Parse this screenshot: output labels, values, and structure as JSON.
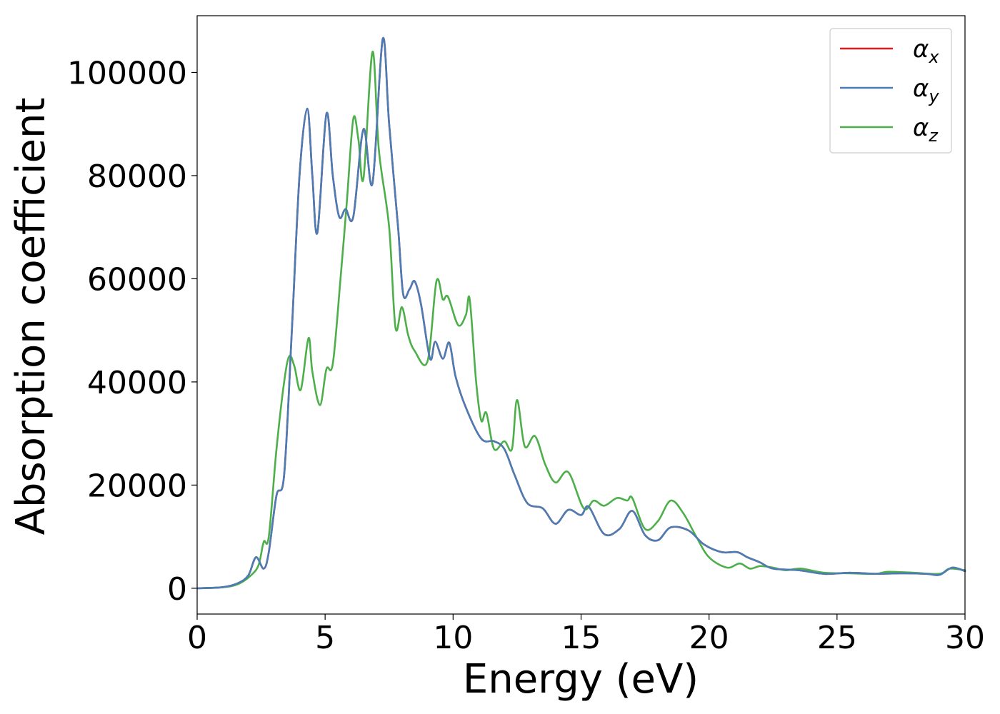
{
  "chart_data": {
    "type": "line",
    "xlabel": "Energy (eV)",
    "ylabel": "Absorption coefficient",
    "xlim": [
      0,
      30
    ],
    "ylim": [
      -5000,
      111000
    ],
    "xticks": [
      0,
      5,
      10,
      15,
      20,
      25,
      30
    ],
    "yticks": [
      0,
      20000,
      40000,
      60000,
      80000,
      100000
    ],
    "grid": false,
    "legend": {
      "placement": "top-right"
    },
    "series": [
      {
        "name": "α_x",
        "label_base": "α",
        "label_sub": "x",
        "color": "#e41a1c",
        "points": [
          [
            0,
            0
          ],
          [
            1,
            200
          ],
          [
            1.6,
            1000
          ],
          [
            2,
            2500
          ],
          [
            2.3,
            6000
          ],
          [
            2.6,
            3800
          ],
          [
            2.8,
            7000
          ],
          [
            3.1,
            18000
          ],
          [
            3.4,
            22000
          ],
          [
            3.7,
            50000
          ],
          [
            4,
            80000
          ],
          [
            4.3,
            93000
          ],
          [
            4.5,
            80000
          ],
          [
            4.7,
            69000
          ],
          [
            5.05,
            92000
          ],
          [
            5.3,
            80000
          ],
          [
            5.55,
            72000
          ],
          [
            5.8,
            73500
          ],
          [
            6.1,
            72000
          ],
          [
            6.5,
            89000
          ],
          [
            6.85,
            78500
          ],
          [
            7.25,
            106500
          ],
          [
            7.5,
            90000
          ],
          [
            7.85,
            70000
          ],
          [
            8.05,
            57000
          ],
          [
            8.3,
            58000
          ],
          [
            8.5,
            59500
          ],
          [
            8.75,
            55000
          ],
          [
            9.1,
            44500
          ],
          [
            9.3,
            47800
          ],
          [
            9.6,
            44500
          ],
          [
            9.85,
            47600
          ],
          [
            10.1,
            41000
          ],
          [
            10.5,
            35000
          ],
          [
            11.1,
            29000
          ],
          [
            11.6,
            28500
          ],
          [
            12,
            27000
          ],
          [
            12.4,
            22000
          ],
          [
            12.9,
            16500
          ],
          [
            13.5,
            15500
          ],
          [
            14,
            12500
          ],
          [
            14.5,
            15200
          ],
          [
            15,
            14200
          ],
          [
            15.3,
            15800
          ],
          [
            15.9,
            10500
          ],
          [
            16.5,
            11500
          ],
          [
            17,
            15000
          ],
          [
            17.5,
            10300
          ],
          [
            18,
            9300
          ],
          [
            18.5,
            11800
          ],
          [
            19.2,
            11200
          ],
          [
            19.8,
            8500
          ],
          [
            20.5,
            7000
          ],
          [
            21.1,
            7000
          ],
          [
            21.5,
            6000
          ],
          [
            22,
            5000
          ],
          [
            22.5,
            3800
          ],
          [
            23.5,
            3500
          ],
          [
            24.5,
            2800
          ],
          [
            25.5,
            3000
          ],
          [
            26.5,
            2800
          ],
          [
            27.5,
            2900
          ],
          [
            28.5,
            2800
          ],
          [
            29,
            2600
          ],
          [
            29.5,
            4000
          ],
          [
            30,
            3300
          ]
        ]
      },
      {
        "name": "α_y",
        "label_base": "α",
        "label_sub": "y",
        "color": "#4a7db5",
        "points": [
          [
            0,
            0
          ],
          [
            1,
            200
          ],
          [
            1.6,
            1000
          ],
          [
            2,
            2500
          ],
          [
            2.3,
            6000
          ],
          [
            2.6,
            3800
          ],
          [
            2.8,
            7000
          ],
          [
            3.1,
            18000
          ],
          [
            3.4,
            22000
          ],
          [
            3.7,
            50000
          ],
          [
            4,
            80000
          ],
          [
            4.3,
            93000
          ],
          [
            4.5,
            80000
          ],
          [
            4.7,
            69000
          ],
          [
            5.05,
            92000
          ],
          [
            5.3,
            80000
          ],
          [
            5.55,
            72000
          ],
          [
            5.8,
            73500
          ],
          [
            6.1,
            72000
          ],
          [
            6.5,
            89000
          ],
          [
            6.85,
            78500
          ],
          [
            7.25,
            106500
          ],
          [
            7.5,
            90000
          ],
          [
            7.85,
            70000
          ],
          [
            8.05,
            57000
          ],
          [
            8.3,
            58000
          ],
          [
            8.5,
            59500
          ],
          [
            8.75,
            55000
          ],
          [
            9.1,
            44500
          ],
          [
            9.3,
            47800
          ],
          [
            9.6,
            44500
          ],
          [
            9.85,
            47600
          ],
          [
            10.1,
            41000
          ],
          [
            10.5,
            35000
          ],
          [
            11.1,
            29000
          ],
          [
            11.6,
            28500
          ],
          [
            12,
            27000
          ],
          [
            12.4,
            22000
          ],
          [
            12.9,
            16500
          ],
          [
            13.5,
            15500
          ],
          [
            14,
            12500
          ],
          [
            14.5,
            15200
          ],
          [
            15,
            14200
          ],
          [
            15.3,
            15800
          ],
          [
            15.9,
            10500
          ],
          [
            16.5,
            11500
          ],
          [
            17,
            15000
          ],
          [
            17.5,
            10300
          ],
          [
            18,
            9300
          ],
          [
            18.5,
            11800
          ],
          [
            19.2,
            11200
          ],
          [
            19.8,
            8500
          ],
          [
            20.5,
            7000
          ],
          [
            21.1,
            7000
          ],
          [
            21.5,
            6000
          ],
          [
            22,
            5000
          ],
          [
            22.5,
            3800
          ],
          [
            23.5,
            3500
          ],
          [
            24.5,
            2800
          ],
          [
            25.5,
            3000
          ],
          [
            26.5,
            2800
          ],
          [
            27.5,
            2900
          ],
          [
            28.5,
            2800
          ],
          [
            29,
            2600
          ],
          [
            29.5,
            4000
          ],
          [
            30,
            3300
          ]
        ]
      },
      {
        "name": "α_z",
        "label_base": "α",
        "label_sub": "z",
        "color": "#4daf4a",
        "points": [
          [
            0,
            0
          ],
          [
            1,
            200
          ],
          [
            1.6,
            800
          ],
          [
            2.1,
            2500
          ],
          [
            2.4,
            4500
          ],
          [
            2.6,
            9000
          ],
          [
            2.8,
            10000
          ],
          [
            3.1,
            27000
          ],
          [
            3.4,
            40000
          ],
          [
            3.6,
            45000
          ],
          [
            3.8,
            43000
          ],
          [
            4.05,
            38500
          ],
          [
            4.35,
            48500
          ],
          [
            4.5,
            42000
          ],
          [
            4.8,
            35500
          ],
          [
            5.05,
            42500
          ],
          [
            5.3,
            43500
          ],
          [
            5.6,
            60000
          ],
          [
            5.85,
            75000
          ],
          [
            6.1,
            91000
          ],
          [
            6.3,
            87000
          ],
          [
            6.5,
            79500
          ],
          [
            6.85,
            104000
          ],
          [
            7.1,
            85000
          ],
          [
            7.5,
            70000
          ],
          [
            7.75,
            50500
          ],
          [
            8,
            54500
          ],
          [
            8.25,
            49000
          ],
          [
            8.5,
            46000
          ],
          [
            9,
            44000
          ],
          [
            9.35,
            59500
          ],
          [
            9.6,
            56000
          ],
          [
            9.8,
            56500
          ],
          [
            10.2,
            51000
          ],
          [
            10.5,
            53000
          ],
          [
            10.65,
            56000
          ],
          [
            10.9,
            40000
          ],
          [
            11.1,
            32500
          ],
          [
            11.3,
            34000
          ],
          [
            11.6,
            27000
          ],
          [
            12,
            28500
          ],
          [
            12.3,
            27000
          ],
          [
            12.5,
            36500
          ],
          [
            12.8,
            27500
          ],
          [
            13.2,
            29500
          ],
          [
            13.6,
            24000
          ],
          [
            14,
            20500
          ],
          [
            14.5,
            22500
          ],
          [
            15.1,
            15500
          ],
          [
            15.5,
            17000
          ],
          [
            15.9,
            16000
          ],
          [
            16.4,
            17500
          ],
          [
            16.8,
            17000
          ],
          [
            17,
            17500
          ],
          [
            17.5,
            11500
          ],
          [
            18,
            13000
          ],
          [
            18.5,
            17000
          ],
          [
            19,
            14500
          ],
          [
            19.5,
            10000
          ],
          [
            20,
            6000
          ],
          [
            20.7,
            4000
          ],
          [
            21.2,
            4800
          ],
          [
            21.6,
            3800
          ],
          [
            22,
            4300
          ],
          [
            22.5,
            4000
          ],
          [
            23,
            3500
          ],
          [
            23.6,
            3800
          ],
          [
            24.5,
            3000
          ],
          [
            25.5,
            2900
          ],
          [
            26.5,
            2800
          ],
          [
            27,
            3200
          ],
          [
            28,
            3000
          ],
          [
            29,
            2800
          ],
          [
            29.4,
            3800
          ],
          [
            30,
            3500
          ]
        ]
      }
    ]
  }
}
